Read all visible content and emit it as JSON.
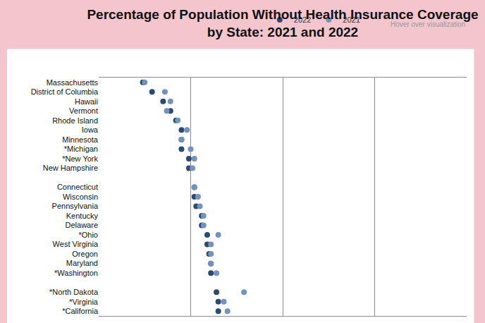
{
  "chart_data": {
    "type": "scatter",
    "title": "Percentage of Population Without Health Insurance Coverage by State: 2021 and 2022",
    "annotations": [
      "Hover over visualization"
    ],
    "orientation": "horizontal",
    "marker": "circle",
    "categories": [
      "Massachusetts",
      "District of Columbia",
      "Hawaii",
      "Vermont",
      "Rhode Island",
      "Iowa",
      "Minnesota",
      "*Michigan",
      "*New York",
      "New Hampshire",
      null,
      "Connecticut",
      "Wisconsin",
      "Pennsylvania",
      "Kentucky",
      "Delaware",
      "*Ohio",
      "West Virginia",
      "Oregon",
      "Maryland",
      "*Washington",
      null,
      "*North Dakota",
      "*Virginia",
      "*California"
    ],
    "series": [
      {
        "name": "2022",
        "color": "#2c4a70",
        "values": [
          2.4,
          2.9,
          3.5,
          3.9,
          4.2,
          4.5,
          4.5,
          4.5,
          4.9,
          4.9,
          null,
          5.2,
          5.2,
          5.3,
          5.6,
          5.6,
          5.9,
          5.9,
          6.0,
          6.1,
          6.1,
          null,
          6.4,
          6.5,
          6.5
        ]
      },
      {
        "name": "2021",
        "color": "#7393bd",
        "values": [
          2.5,
          3.6,
          3.9,
          3.7,
          4.3,
          4.8,
          4.5,
          5.0,
          5.2,
          5.1,
          null,
          5.2,
          5.4,
          5.5,
          5.7,
          5.7,
          6.5,
          6.1,
          6.1,
          6.1,
          6.4,
          null,
          7.9,
          6.8,
          7.0
        ]
      }
    ],
    "xlim": [
      0,
      20
    ],
    "xticks": [
      0,
      5,
      10,
      15,
      20
    ],
    "grid": true,
    "legend": "top right",
    "tick_labels": "y"
  }
}
